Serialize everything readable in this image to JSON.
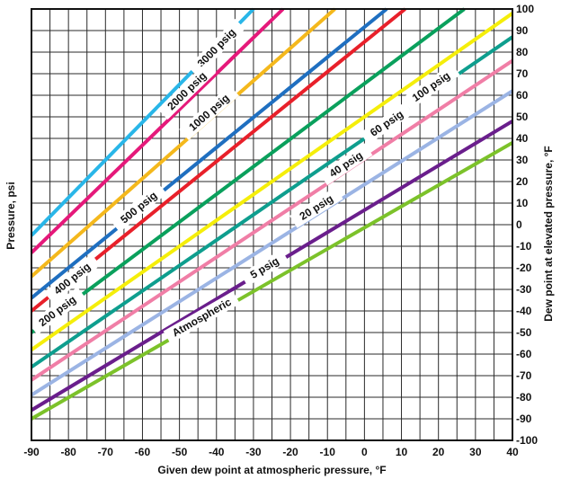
{
  "chart_data": {
    "type": "line",
    "xlabel": "Given dew point at atmospheric pressure, °F",
    "ylabel_left": "Pressure, psi",
    "ylabel_right": "Dew point at elevated pressure, °F",
    "xlim": [
      -90,
      40
    ],
    "ylim": [
      -100,
      100
    ],
    "x_ticks": [
      -90,
      -80,
      -70,
      -60,
      -50,
      -40,
      -30,
      -20,
      -10,
      0,
      10,
      20,
      30,
      40
    ],
    "y_ticks": [
      -100,
      -90,
      -80,
      -70,
      -60,
      -50,
      -40,
      -30,
      -20,
      -10,
      0,
      10,
      20,
      30,
      40,
      50,
      60,
      70,
      80,
      90,
      100
    ],
    "grid": true,
    "series": [
      {
        "name": "3000 psig",
        "color": "#29b6e8",
        "x": [
          -90,
          -30
        ],
        "y": [
          -5,
          100
        ],
        "label_x": -40,
        "label_y": 82
      },
      {
        "name": "2000 psig",
        "color": "#e5197a",
        "x": [
          -90,
          -22
        ],
        "y": [
          -13,
          100
        ],
        "label_x": -48,
        "label_y": 62
      },
      {
        "name": "1000 psig",
        "color": "#f4b81c",
        "x": [
          -90,
          -8
        ],
        "y": [
          -24,
          100
        ],
        "label_x": -42,
        "label_y": 52
      },
      {
        "name": "500 psig",
        "color": "#1f6fc0",
        "x": [
          -90,
          6
        ],
        "y": [
          -34,
          100
        ],
        "label_x": -61,
        "label_y": 8
      },
      {
        "name": "400 psig",
        "color": "#e8202a",
        "x": [
          -90,
          11
        ],
        "y": [
          -40,
          100
        ],
        "label_x": -79,
        "label_y": -25
      },
      {
        "name": "200 psig",
        "color": "#0aa05c",
        "x": [
          -90,
          27
        ],
        "y": [
          -50,
          100
        ],
        "label_x": -83,
        "label_y": -40
      },
      {
        "name": "100 psig",
        "color": "#f5ee0a",
        "x": [
          -90,
          40
        ],
        "y": [
          -58,
          98
        ],
        "label_x": 18,
        "label_y": 64
      },
      {
        "name": "60 psig",
        "color": "#0e9e8e",
        "x": [
          -90,
          40
        ],
        "y": [
          -66,
          87
        ],
        "label_x": 6,
        "label_y": 47
      },
      {
        "name": "40 psig",
        "color": "#f07ea6",
        "x": [
          -90,
          40
        ],
        "y": [
          -72,
          76
        ],
        "label_x": -5,
        "label_y": 28
      },
      {
        "name": "20 psig",
        "color": "#9bb4e4",
        "x": [
          -90,
          40
        ],
        "y": [
          -79,
          62
        ],
        "label_x": -13,
        "label_y": 8
      },
      {
        "name": "5 psig",
        "color": "#6a1e8c",
        "x": [
          -90,
          40
        ],
        "y": [
          -86,
          48
        ],
        "label_x": -27,
        "label_y": -20
      },
      {
        "name": "Atmospheric",
        "color": "#7cc22a",
        "x": [
          -90,
          40
        ],
        "y": [
          -90,
          38
        ],
        "label_x": -44,
        "label_y": -43
      }
    ]
  }
}
